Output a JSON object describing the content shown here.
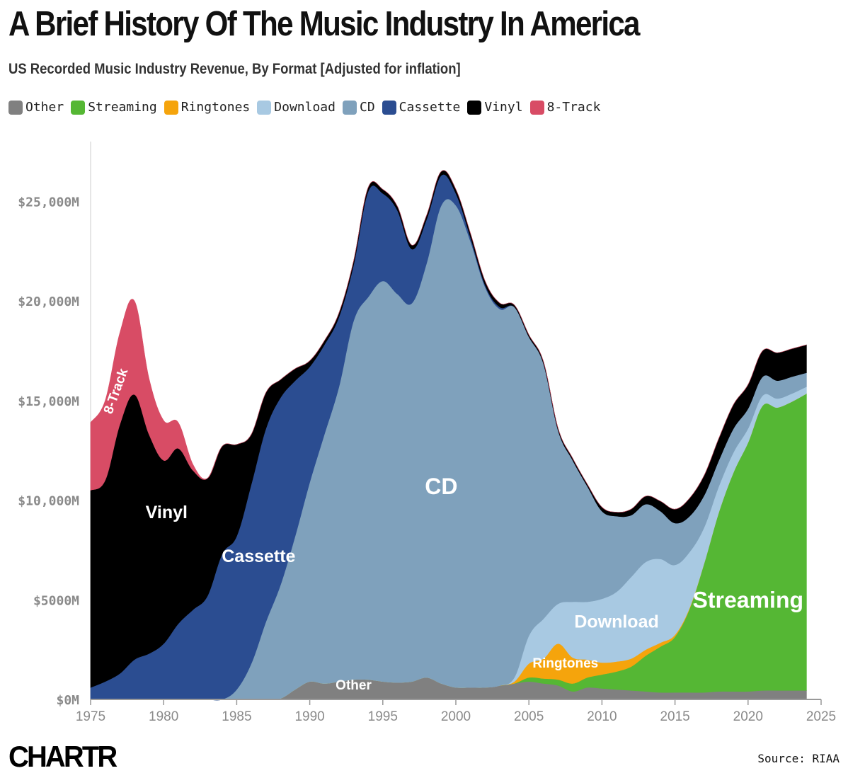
{
  "title": "A Brief History Of The Music Industry In America",
  "subtitle": "US Recorded Music Industry Revenue, By Format [Adjusted for inflation]",
  "source": "Source: RIAA",
  "logo": "CHARTR",
  "legend": [
    {
      "name": "Other",
      "color": "#808080"
    },
    {
      "name": "Streaming",
      "color": "#55b734"
    },
    {
      "name": "Ringtones",
      "color": "#f5a40c"
    },
    {
      "name": "Download",
      "color": "#a8c9e2"
    },
    {
      "name": "CD",
      "color": "#7fa1bc"
    },
    {
      "name": "Cassette",
      "color": "#2b4d91"
    },
    {
      "name": "Vinyl",
      "color": "#000000"
    },
    {
      "name": "8-Track",
      "color": "#d84c65"
    }
  ],
  "chart_data": {
    "type": "area",
    "stacked": true,
    "x": [
      1975,
      1976,
      1977,
      1978,
      1979,
      1980,
      1981,
      1982,
      1983,
      1984,
      1985,
      1986,
      1987,
      1988,
      1989,
      1990,
      1991,
      1992,
      1993,
      1994,
      1995,
      1996,
      1997,
      1998,
      1999,
      2000,
      2001,
      2002,
      2003,
      2004,
      2005,
      2006,
      2007,
      2008,
      2009,
      2010,
      2011,
      2012,
      2013,
      2014,
      2015,
      2016,
      2017,
      2018,
      2019,
      2020,
      2021,
      2022,
      2023,
      2024
    ],
    "series": [
      {
        "name": "Other",
        "color": "#808080",
        "values": [
          0,
          0,
          0,
          0,
          0,
          0,
          0,
          0,
          0,
          0,
          0,
          0,
          0,
          50,
          500,
          900,
          800,
          900,
          1000,
          1000,
          900,
          850,
          900,
          1100,
          800,
          600,
          600,
          600,
          700,
          800,
          900,
          800,
          700,
          400,
          600,
          550,
          500,
          450,
          400,
          350,
          350,
          350,
          350,
          400,
          400,
          400,
          450,
          450,
          450,
          450
        ]
      },
      {
        "name": "Streaming",
        "color": "#55b734",
        "values": [
          0,
          0,
          0,
          0,
          0,
          0,
          0,
          0,
          0,
          0,
          0,
          0,
          0,
          0,
          0,
          0,
          0,
          0,
          0,
          0,
          0,
          0,
          0,
          0,
          0,
          0,
          0,
          0,
          0,
          0,
          200,
          250,
          300,
          400,
          500,
          700,
          900,
          1200,
          1800,
          2300,
          2800,
          4200,
          6500,
          9000,
          11000,
          12500,
          14300,
          14200,
          14500,
          14900
        ]
      },
      {
        "name": "Ringtones",
        "color": "#f5a40c",
        "values": [
          0,
          0,
          0,
          0,
          0,
          0,
          0,
          0,
          0,
          0,
          0,
          0,
          0,
          0,
          0,
          0,
          0,
          0,
          0,
          0,
          0,
          0,
          0,
          0,
          0,
          0,
          0,
          0,
          0,
          100,
          700,
          1000,
          1800,
          1300,
          900,
          600,
          500,
          400,
          300,
          200,
          100,
          50,
          0,
          0,
          0,
          0,
          0,
          0,
          0,
          0
        ]
      },
      {
        "name": "Download",
        "color": "#a8c9e2",
        "values": [
          0,
          0,
          0,
          0,
          0,
          0,
          0,
          0,
          0,
          0,
          0,
          0,
          0,
          0,
          0,
          0,
          0,
          0,
          0,
          0,
          0,
          0,
          0,
          0,
          0,
          0,
          0,
          0,
          0,
          200,
          1400,
          2000,
          2000,
          2800,
          2900,
          3200,
          3500,
          4100,
          4400,
          4200,
          3500,
          2800,
          1800,
          1300,
          1000,
          700,
          500,
          450,
          400,
          350
        ]
      },
      {
        "name": "CD",
        "color": "#7fa1bc",
        "values": [
          0,
          0,
          0,
          0,
          0,
          0,
          0,
          0,
          0,
          0,
          500,
          1800,
          3900,
          5700,
          7700,
          10000,
          12500,
          14800,
          18000,
          19200,
          20100,
          19500,
          19000,
          20800,
          24000,
          24200,
          22400,
          20100,
          18900,
          18600,
          15000,
          12800,
          8700,
          7100,
          5800,
          4400,
          3800,
          3100,
          2900,
          2400,
          2100,
          1800,
          1600,
          1300,
          1200,
          1000,
          950,
          900,
          850,
          700
        ]
      },
      {
        "name": "Cassette",
        "color": "#2b4d91",
        "values": [
          600,
          900,
          1300,
          2000,
          2300,
          2800,
          3800,
          4500,
          5200,
          7300,
          7700,
          9000,
          9700,
          9400,
          7800,
          5800,
          4500,
          3500,
          2800,
          5300,
          4400,
          4200,
          2700,
          2200,
          1500,
          600,
          200,
          100,
          100,
          0,
          0,
          0,
          0,
          0,
          0,
          0,
          0,
          0,
          0,
          0,
          0,
          0,
          0,
          0,
          0,
          0,
          0,
          0,
          0,
          0
        ]
      },
      {
        "name": "Vinyl",
        "color": "#000000",
        "values": [
          9900,
          10100,
          12500,
          13300,
          11000,
          9200,
          8800,
          7000,
          5900,
          5400,
          4600,
          2500,
          1800,
          900,
          600,
          300,
          200,
          200,
          200,
          200,
          200,
          200,
          200,
          200,
          200,
          200,
          200,
          200,
          200,
          100,
          100,
          100,
          100,
          100,
          100,
          200,
          200,
          300,
          400,
          500,
          700,
          900,
          1000,
          1100,
          1200,
          1200,
          1300,
          1400,
          1400,
          1400
        ]
      },
      {
        "name": "8-Track",
        "color": "#d84c65",
        "values": [
          3400,
          4000,
          4600,
          4700,
          2800,
          2000,
          1300,
          300,
          0,
          0,
          0,
          0,
          0,
          0,
          0,
          0,
          0,
          0,
          0,
          0,
          0,
          0,
          0,
          0,
          0,
          0,
          0,
          0,
          0,
          0,
          0,
          0,
          0,
          0,
          0,
          0,
          0,
          0,
          0,
          0,
          0,
          0,
          0,
          0,
          0,
          0,
          0,
          0,
          0,
          0
        ]
      }
    ],
    "ylim": [
      0,
      28000
    ],
    "xlim": [
      1975,
      2025
    ],
    "y_ticks": [
      {
        "value": 0,
        "label": "$0M"
      },
      {
        "value": 5000,
        "label": "$5000M"
      },
      {
        "value": 10000,
        "label": "$10,000M"
      },
      {
        "value": 15000,
        "label": "$15,000M"
      },
      {
        "value": 20000,
        "label": "$20,000M"
      },
      {
        "value": 25000,
        "label": "$25,000M"
      }
    ],
    "x_ticks": [
      1975,
      1980,
      1985,
      1990,
      1995,
      2000,
      2005,
      2010,
      2015,
      2020,
      2025
    ],
    "annotations": [
      {
        "text": "8-Track",
        "x": 1977,
        "y": 15400,
        "color": "#ffffff",
        "size": "small",
        "rotate": -70
      },
      {
        "text": "Vinyl",
        "x": 1980.2,
        "y": 9100,
        "color": "#ffffff",
        "size": "medium"
      },
      {
        "text": "Cassette",
        "x": 1986.5,
        "y": 6900,
        "color": "#ffffff",
        "size": "medium"
      },
      {
        "text": "CD",
        "x": 1999,
        "y": 10300,
        "color": "#ffffff",
        "size": "large"
      },
      {
        "text": "Download",
        "x": 2011,
        "y": 3600,
        "color": "#ffffff",
        "size": "medium"
      },
      {
        "text": "Ringtones",
        "x": 2007.5,
        "y": 1600,
        "color": "#ffffff",
        "size": "small"
      },
      {
        "text": "Other",
        "x": 1993,
        "y": 500,
        "color": "#ffffff",
        "size": "small"
      },
      {
        "text": "Streaming",
        "x": 2020,
        "y": 4600,
        "color": "#ffffff",
        "size": "large"
      }
    ]
  }
}
